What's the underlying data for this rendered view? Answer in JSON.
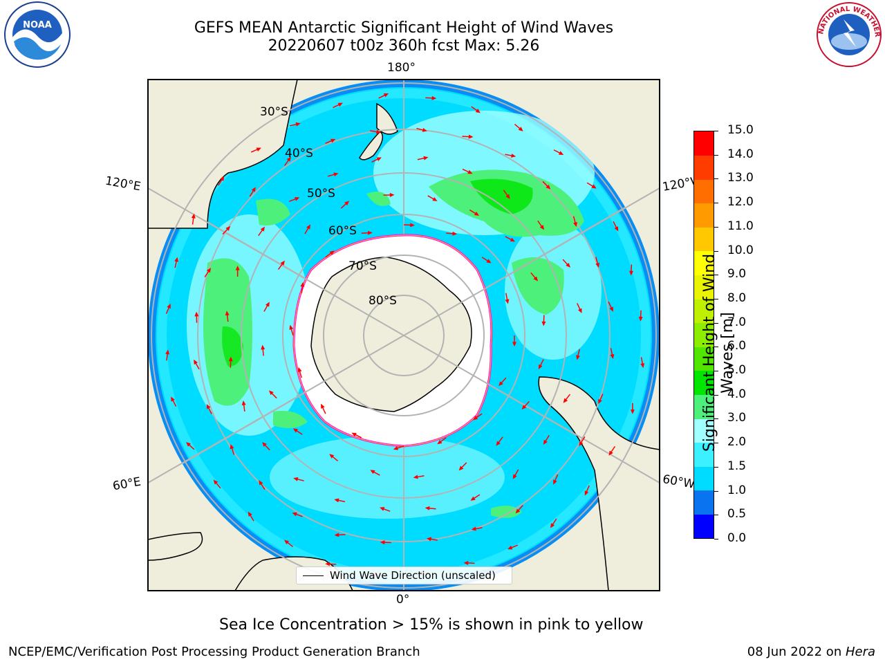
{
  "title": {
    "line1": "GEFS MEAN Antarctic Significant Height of Wind Waves",
    "line2": "20220607 t00z 360h fcst   Max: 5.26"
  },
  "logos": {
    "left": "NOAA",
    "right": "NATIONAL WEATHER SERVICE"
  },
  "map": {
    "projection": "south-polar-stereographic",
    "longitude_labels": {
      "top": "180°",
      "bottom": "0°",
      "left_upper": "120°E",
      "left_lower": "60°E",
      "right_upper": "120°W",
      "right_lower": "60°W"
    },
    "latitude_labels": [
      "30°S",
      "40°S",
      "50°S",
      "60°S",
      "70°S",
      "80°S"
    ],
    "legend_label": "Wind Wave Direction (unscaled)",
    "arrow_color": "#ff0000",
    "land_color": "#efeddb",
    "sea_ice_color": "#ffffff"
  },
  "colorbar": {
    "label": "Significant Height of Wind Waves [m]",
    "ticks": [
      "0.0",
      "0.5",
      "1.0",
      "1.5",
      "2.0",
      "3.0",
      "4.0",
      "5.0",
      "6.0",
      "7.0",
      "8.0",
      "9.0",
      "10.0",
      "11.0",
      "12.0",
      "13.0",
      "14.0",
      "15.0"
    ],
    "colors": [
      "#0000ff",
      "#0a73f0",
      "#00dcff",
      "#3cf0ff",
      "#a0ffff",
      "#4cf07a",
      "#00e600",
      "#50e600",
      "#8ced00",
      "#bff000",
      "#e8f400",
      "#ffff00",
      "#ffc800",
      "#ff9a00",
      "#ff6e00",
      "#ff3c00",
      "#ff0000"
    ]
  },
  "caption": "Sea Ice Concentration > 15% is shown in pink to yellow",
  "footer": {
    "left": "NCEP/EMC/Verification Post Processing Product Generation Branch",
    "right_prefix": "08 Jun 2022 on ",
    "right_italic": "Hera"
  }
}
